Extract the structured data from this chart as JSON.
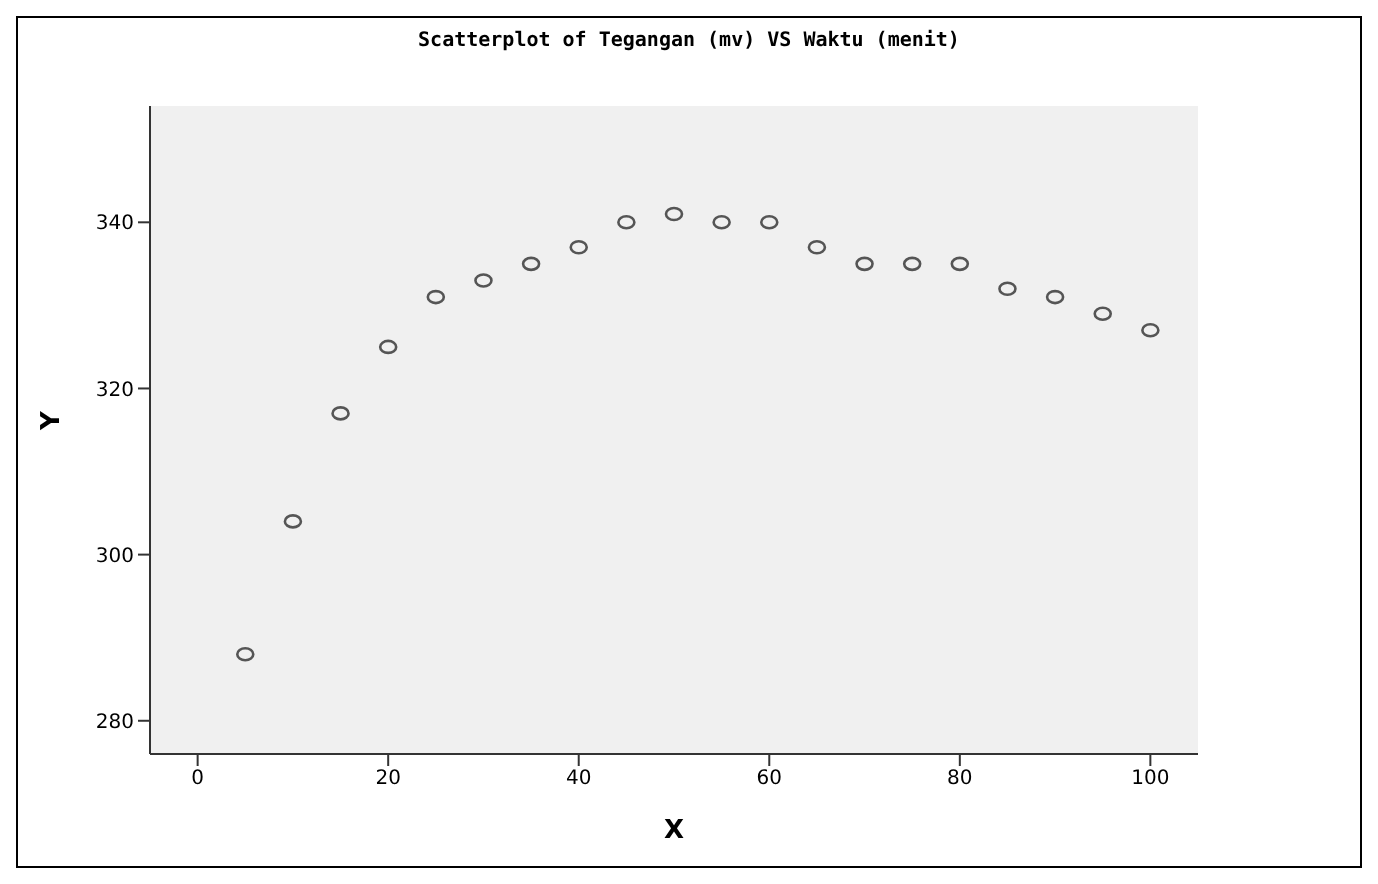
{
  "chart_data": {
    "type": "scatter",
    "title": "Scatterplot of Tegangan (mv) VS Waktu (menit)",
    "xlabel": "X",
    "ylabel": "Y",
    "x": [
      5,
      10,
      15,
      20,
      25,
      30,
      35,
      40,
      45,
      50,
      55,
      60,
      65,
      70,
      75,
      80,
      85,
      90,
      95,
      100
    ],
    "series": [
      {
        "color": "#555555",
        "values": [
          288,
          304,
          317,
          325,
          331,
          333,
          335,
          337,
          340,
          341,
          340,
          340,
          337,
          335,
          335,
          335,
          332,
          331,
          329,
          327
        ]
      }
    ],
    "xlim": [
      -5,
      105
    ],
    "xticks": [
      0,
      20,
      40,
      60,
      80,
      100
    ],
    "ylim": [
      276,
      354
    ],
    "yticks": [
      280,
      300,
      320,
      340
    ],
    "marker": "circle",
    "grid": false,
    "legend": false
  }
}
